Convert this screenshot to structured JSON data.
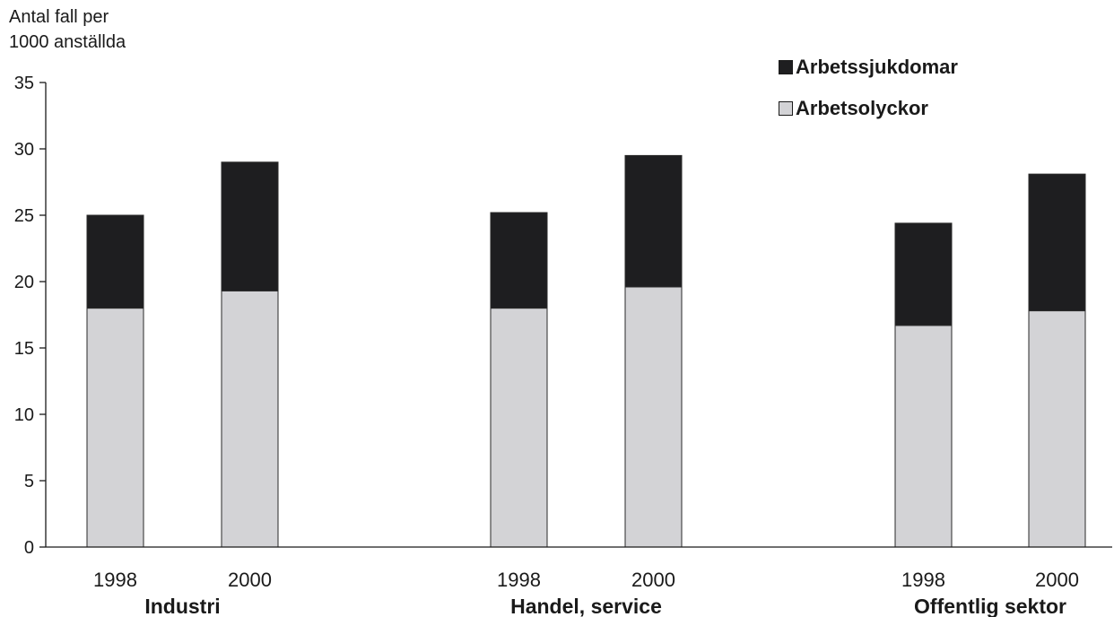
{
  "chart_data": {
    "type": "bar",
    "stacked": true,
    "ylabel": [
      "Antal fall per",
      "1000 anställda"
    ],
    "ylim": [
      0,
      35
    ],
    "yticks": [
      0,
      5,
      10,
      15,
      20,
      25,
      30,
      35
    ],
    "groups": [
      {
        "name": "Industri",
        "categories": [
          "1998",
          "2000"
        ]
      },
      {
        "name": "Handel, service",
        "categories": [
          "1998",
          "2000"
        ]
      },
      {
        "name": "Offentlig sektor",
        "categories": [
          "1998",
          "2000"
        ]
      }
    ],
    "series": [
      {
        "name": "Arbetsolyckor",
        "color": "#d3d3d6",
        "values": [
          18.0,
          19.3,
          18.0,
          19.6,
          16.7,
          17.8
        ]
      },
      {
        "name": "Arbetssjukdomar",
        "color": "#1e1e20",
        "values": [
          7.0,
          9.7,
          7.2,
          9.9,
          7.7,
          10.3
        ]
      }
    ],
    "legend": {
      "position": "top-right",
      "items": [
        "Arbetssjukdomar",
        "Arbetsolyckor"
      ]
    }
  }
}
